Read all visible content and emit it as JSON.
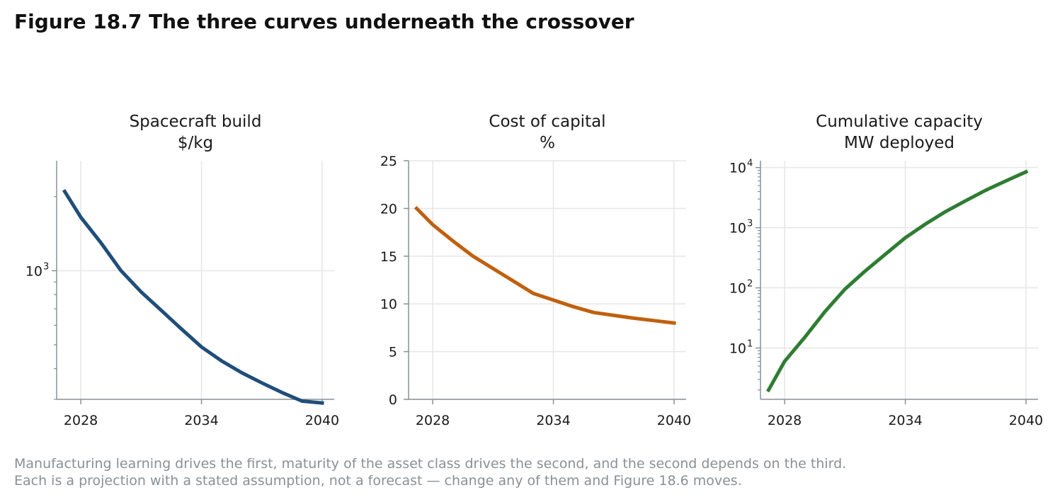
{
  "figure": {
    "title": "Figure 18.7  The three curves underneath the crossover",
    "caption_lines": [
      "Manufacturing learning drives the first, maturity of the asset class drives the second, and the second depends on the third.",
      "Each is a projection with a stated assumption, not a forecast — change any of them and Figure 18.6 moves."
    ]
  },
  "colors": {
    "build": "#1f4e79",
    "capital": "#c0600f",
    "capacity": "#2e7d32",
    "grid": "#e6e6e6",
    "axis": "#8a9096"
  },
  "chart_data": [
    {
      "type": "line",
      "title": "Spacecraft build",
      "subtitle": "$/kg",
      "yscale": "log",
      "xlim": [
        2026.8,
        2040.6
      ],
      "ylim": [
        300,
        2800
      ],
      "xticks": [
        2028,
        2034,
        2040
      ],
      "yticks_major": [
        {
          "value": 1000,
          "base": "10",
          "exp": "3"
        }
      ],
      "yticks_minor": [
        300,
        400,
        500,
        600,
        700,
        800,
        900,
        2000
      ],
      "grid": true,
      "series": [
        {
          "color_key": "build",
          "x": [
            2027.2,
            2028,
            2029,
            2030,
            2031,
            2032,
            2033,
            2034,
            2035,
            2036,
            2037,
            2038,
            2039,
            2040
          ],
          "y": [
            2100,
            1650,
            1300,
            1000,
            820,
            690,
            580,
            490,
            430,
            385,
            350,
            320,
            295,
            290
          ]
        }
      ]
    },
    {
      "type": "line",
      "title": "Cost of capital",
      "subtitle": "%",
      "yscale": "linear",
      "xlim": [
        2026.8,
        2040.6
      ],
      "ylim": [
        0,
        25
      ],
      "xticks": [
        2028,
        2034,
        2040
      ],
      "yticks": [
        0,
        5,
        10,
        15,
        20,
        25
      ],
      "grid": true,
      "series": [
        {
          "color_key": "capital",
          "x": [
            2027.2,
            2028,
            2029,
            2030,
            2031,
            2032,
            2033,
            2034,
            2035,
            2036,
            2037,
            2038,
            2039,
            2040
          ],
          "y": [
            20,
            18.3,
            16.6,
            15,
            13.7,
            12.4,
            11.1,
            10.4,
            9.7,
            9.1,
            8.8,
            8.5,
            8.25,
            8
          ]
        }
      ]
    },
    {
      "type": "line",
      "title": "Cumulative capacity",
      "subtitle": "MW deployed",
      "yscale": "log",
      "xlim": [
        2026.8,
        2040.6
      ],
      "ylim": [
        1.4,
        13000
      ],
      "xticks": [
        2028,
        2034,
        2040
      ],
      "yticks_major": [
        {
          "value": 10,
          "base": "10",
          "exp": "1"
        },
        {
          "value": 100,
          "base": "10",
          "exp": "2"
        },
        {
          "value": 1000,
          "base": "10",
          "exp": "3"
        },
        {
          "value": 10000,
          "base": "10",
          "exp": "4"
        }
      ],
      "grid": true,
      "series": [
        {
          "color_key": "capacity",
          "x": [
            2027.2,
            2028,
            2029,
            2030,
            2031,
            2032,
            2033,
            2034,
            2035,
            2036,
            2037,
            2038,
            2039,
            2040
          ],
          "y": [
            2,
            6,
            15,
            40,
            95,
            190,
            360,
            680,
            1150,
            1850,
            2800,
            4200,
            6000,
            8500
          ]
        }
      ]
    }
  ]
}
